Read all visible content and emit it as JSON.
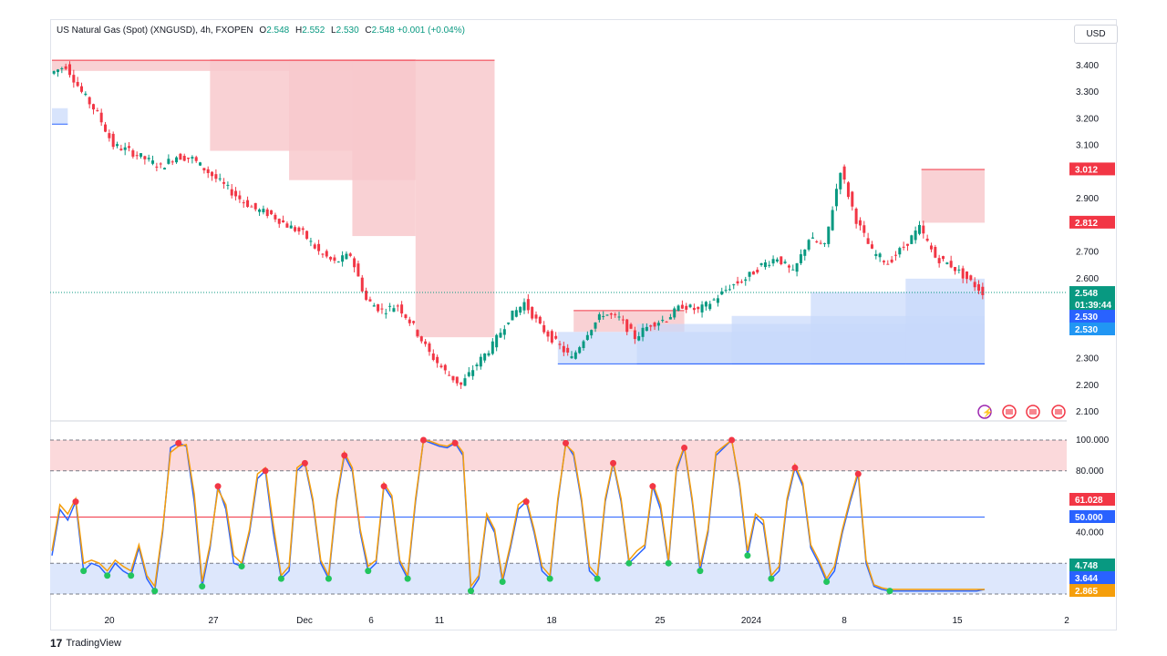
{
  "header": {
    "symbol": "US Natural Gas (Spot) (XNGUSD), 4h, FXOPEN",
    "open_label": "O",
    "open": "2.548",
    "high_label": "H",
    "high": "2.552",
    "low_label": "L",
    "low": "2.530",
    "close_label": "C",
    "close": "2.548",
    "change": "+0.001 (+0.04%)"
  },
  "currency_button": "USD",
  "brand": "TradingView",
  "colors": {
    "up": "#089981",
    "down": "#f23645",
    "supply_zone": "#f8c9cc",
    "demand_zone": "#c7d8fb",
    "stoch_k": "#2962ff",
    "stoch_d": "#f59e0b"
  },
  "icons": [
    "flash-icon",
    "us-flag-icon",
    "us-flag-icon",
    "us-flag-icon"
  ],
  "chart_data": [
    {
      "type": "candlestick",
      "name": "US Natural Gas (Spot) (XNGUSD), 4h, FXOPEN",
      "ylim": [
        2.1,
        3.45
      ],
      "y_ticks": [
        "3.400",
        "3.300",
        "3.200",
        "3.100",
        "3.000",
        "2.900",
        "2.800",
        "2.700",
        "2.600",
        "2.500",
        "2.400",
        "2.300",
        "2.200",
        "2.100"
      ],
      "x_ticks": [
        "20",
        "27",
        "Dec",
        "6",
        "11",
        "18",
        "25",
        "2024",
        "8",
        "15",
        "2"
      ],
      "price_path": [
        [
          0,
          3.37
        ],
        [
          2,
          3.4
        ],
        [
          4,
          3.3
        ],
        [
          6,
          3.22
        ],
        [
          8,
          3.1
        ],
        [
          10,
          3.08
        ],
        [
          12,
          3.05
        ],
        [
          14,
          3.02
        ],
        [
          16,
          3.06
        ],
        [
          18,
          3.05
        ],
        [
          20,
          3.0
        ],
        [
          22,
          2.95
        ],
        [
          24,
          2.9
        ],
        [
          26,
          2.86
        ],
        [
          28,
          2.84
        ],
        [
          30,
          2.8
        ],
        [
          32,
          2.77
        ],
        [
          34,
          2.7
        ],
        [
          36,
          2.66
        ],
        [
          38,
          2.69
        ],
        [
          40,
          2.52
        ],
        [
          42,
          2.48
        ],
        [
          44,
          2.5
        ],
        [
          46,
          2.42
        ],
        [
          48,
          2.32
        ],
        [
          50,
          2.25
        ],
        [
          52,
          2.2
        ],
        [
          54,
          2.28
        ],
        [
          56,
          2.35
        ],
        [
          58,
          2.45
        ],
        [
          60,
          2.51
        ],
        [
          62,
          2.42
        ],
        [
          64,
          2.36
        ],
        [
          66,
          2.3
        ],
        [
          68,
          2.4
        ],
        [
          70,
          2.47
        ],
        [
          72,
          2.45
        ],
        [
          74,
          2.38
        ],
        [
          76,
          2.43
        ],
        [
          78,
          2.45
        ],
        [
          80,
          2.5
        ],
        [
          82,
          2.48
        ],
        [
          84,
          2.52
        ],
        [
          86,
          2.57
        ],
        [
          88,
          2.6
        ],
        [
          90,
          2.65
        ],
        [
          92,
          2.68
        ],
        [
          94,
          2.62
        ],
        [
          96,
          2.75
        ],
        [
          98,
          2.72
        ],
        [
          100,
          3.01
        ],
        [
          102,
          2.82
        ],
        [
          104,
          2.7
        ],
        [
          106,
          2.66
        ],
        [
          108,
          2.72
        ],
        [
          110,
          2.79
        ],
        [
          112,
          2.68
        ],
        [
          114,
          2.65
        ],
        [
          116,
          2.6
        ],
        [
          118,
          2.55
        ]
      ],
      "levels": [
        {
          "label": "3.012",
          "value": 3.012,
          "color": "#f23645"
        },
        {
          "label": "2.812",
          "value": 2.812,
          "color": "#f23645"
        },
        {
          "label": "2.548",
          "value": 2.548,
          "color": "#089981"
        },
        {
          "label": "01:39:44",
          "value": 2.52,
          "color": "#089981"
        },
        {
          "label": "2.530",
          "value": 2.49,
          "color": "#2962ff"
        },
        {
          "label": "2.530",
          "value": 2.45,
          "color": "#2196f3"
        }
      ],
      "supply_zones": [
        {
          "x0": 0,
          "x1": 46,
          "top": 3.42,
          "bottom": 3.38
        },
        {
          "x0": 20,
          "x1": 46,
          "top": 3.42,
          "bottom": 3.08
        },
        {
          "x0": 30,
          "x1": 46,
          "top": 3.42,
          "bottom": 2.97
        },
        {
          "x0": 38,
          "x1": 46,
          "top": 3.42,
          "bottom": 2.76
        },
        {
          "x0": 46,
          "x1": 56,
          "top": 3.42,
          "bottom": 2.38
        },
        {
          "x0": 66,
          "x1": 80,
          "top": 2.48,
          "bottom": 2.4
        },
        {
          "x0": 110,
          "x1": 118,
          "top": 3.01,
          "bottom": 2.81
        }
      ],
      "demand_zones": [
        {
          "x0": 0,
          "x1": 2,
          "top": 3.24,
          "bottom": 3.18
        },
        {
          "x0": 64,
          "x1": 118,
          "top": 2.4,
          "bottom": 2.28
        },
        {
          "x0": 74,
          "x1": 118,
          "top": 2.43,
          "bottom": 2.28
        },
        {
          "x0": 86,
          "x1": 118,
          "top": 2.46,
          "bottom": 2.28
        },
        {
          "x0": 96,
          "x1": 118,
          "top": 2.55,
          "bottom": 2.28
        },
        {
          "x0": 108,
          "x1": 118,
          "top": 2.6,
          "bottom": 2.28
        }
      ]
    },
    {
      "type": "line",
      "name": "Stochastic",
      "ylim": [
        0,
        100
      ],
      "y_ticks": [
        "100.000",
        "80.000",
        "40.000"
      ],
      "levels": [
        {
          "label": "61.028",
          "value": 61.028,
          "color": "#f23645"
        },
        {
          "label": "50.000",
          "value": 50.0,
          "color": "#2962ff"
        },
        {
          "label": "4.748",
          "value": 4.748,
          "color": "#089981"
        },
        {
          "label": "3.644",
          "value": 3.644,
          "color": "#2962ff"
        },
        {
          "label": "2.865",
          "value": 2.865,
          "color": "#f59e0b"
        }
      ],
      "bands": {
        "overbought": [
          80,
          100
        ],
        "oversold": [
          0,
          20
        ]
      },
      "x": [
        0,
        1,
        2,
        3,
        4,
        5,
        6,
        7,
        8,
        9,
        10,
        11,
        12,
        13,
        14,
        15,
        16,
        17,
        18,
        19,
        20,
        21,
        22,
        23,
        24,
        25,
        26,
        27,
        28,
        29,
        30,
        31,
        32,
        33,
        34,
        35,
        36,
        37,
        38,
        39,
        40,
        41,
        42,
        43,
        44,
        45,
        46,
        47,
        48,
        49,
        50,
        51,
        52,
        53,
        54,
        55,
        56,
        57,
        58,
        59,
        60,
        61,
        62,
        63,
        64,
        65,
        66,
        67,
        68,
        69,
        70,
        71,
        72,
        73,
        74,
        75,
        76,
        77,
        78,
        79,
        80,
        81,
        82,
        83,
        84,
        85,
        86,
        87,
        88,
        89,
        90,
        91,
        92,
        93,
        94,
        95,
        96,
        97,
        98,
        99,
        100,
        101,
        102,
        103,
        104,
        105,
        106,
        107,
        108,
        109,
        110,
        111,
        112,
        113,
        114,
        115,
        116,
        117,
        118
      ],
      "series": [
        {
          "name": "%K",
          "values": [
            25,
            55,
            48,
            60,
            15,
            20,
            18,
            12,
            20,
            15,
            12,
            30,
            10,
            2,
            40,
            95,
            98,
            96,
            60,
            5,
            30,
            70,
            55,
            20,
            18,
            40,
            75,
            80,
            40,
            10,
            15,
            80,
            85,
            60,
            20,
            10,
            60,
            90,
            80,
            40,
            15,
            20,
            70,
            62,
            20,
            10,
            60,
            100,
            98,
            96,
            95,
            98,
            90,
            2,
            10,
            50,
            40,
            8,
            30,
            55,
            60,
            40,
            15,
            10,
            60,
            98,
            90,
            60,
            15,
            10,
            60,
            85,
            60,
            20,
            25,
            30,
            70,
            55,
            20,
            80,
            95,
            60,
            15,
            40,
            90,
            95,
            100,
            70,
            25,
            50,
            45,
            10,
            15,
            60,
            82,
            70,
            30,
            20,
            8,
            15,
            40,
            60,
            78,
            20,
            5,
            3,
            2,
            2,
            2,
            2,
            2,
            2,
            2,
            2,
            2,
            2,
            2,
            2,
            3
          ],
          "color": "#2962ff"
        },
        {
          "name": "%D",
          "values": [
            28,
            58,
            52,
            62,
            20,
            22,
            20,
            15,
            22,
            18,
            15,
            32,
            12,
            5,
            42,
            92,
            96,
            97,
            65,
            8,
            32,
            68,
            58,
            25,
            20,
            42,
            78,
            82,
            45,
            12,
            18,
            82,
            86,
            62,
            22,
            12,
            62,
            92,
            82,
            42,
            18,
            22,
            72,
            64,
            22,
            12,
            62,
            100,
            99,
            97,
            96,
            99,
            92,
            5,
            12,
            52,
            42,
            10,
            32,
            58,
            62,
            42,
            18,
            12,
            62,
            97,
            92,
            62,
            18,
            12,
            62,
            86,
            62,
            22,
            28,
            32,
            72,
            58,
            22,
            82,
            96,
            62,
            18,
            42,
            92,
            96,
            100,
            72,
            28,
            52,
            48,
            12,
            18,
            62,
            84,
            72,
            32,
            22,
            10,
            18,
            42,
            62,
            80,
            22,
            6,
            4,
            3,
            3,
            3,
            3,
            3,
            3,
            3,
            3,
            3,
            3,
            3,
            3,
            3
          ],
          "color": "#f59e0b"
        }
      ]
    }
  ]
}
